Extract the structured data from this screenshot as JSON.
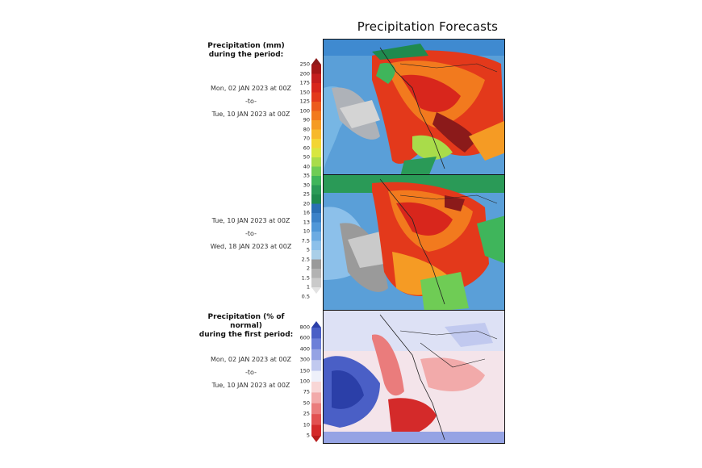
{
  "title": "Precipitation Forecasts",
  "panel1": {
    "header_line1": "Precipitation (mm)",
    "header_line2": "during the period:",
    "start": "Mon, 02 JAN 2023 at 00Z",
    "sep": "-to-",
    "end": "Tue, 10 JAN 2023 at 00Z"
  },
  "panel2": {
    "start": "Tue, 10 JAN 2023 at 00Z",
    "sep": "-to-",
    "end": "Wed, 18 JAN 2023 at 00Z"
  },
  "panel3": {
    "header_line1": "Precipitation (% of normal)",
    "header_line2": "during the first period:",
    "start": "Mon, 02 JAN 2023 at 00Z",
    "sep": "-to-",
    "end": "Tue, 10 JAN 2023 at 00Z"
  },
  "mm_scale": {
    "labels": [
      "250",
      "200",
      "175",
      "150",
      "125",
      "100",
      "90",
      "80",
      "70",
      "60",
      "50",
      "40",
      "35",
      "30",
      "25",
      "20",
      "16",
      "13",
      "10",
      "7.5",
      "5",
      "2.5",
      "2",
      "1.5",
      "1",
      "0.5"
    ],
    "colors": [
      "#8b1a1a",
      "#a31717",
      "#c41e1e",
      "#d8261c",
      "#e3391b",
      "#ec5b1c",
      "#f27a1e",
      "#f59b24",
      "#f7b92c",
      "#f3d533",
      "#d8e640",
      "#a9dc4a",
      "#6fcc55",
      "#3fb55b",
      "#2a9a57",
      "#1f8a4e",
      "#2a6fb4",
      "#3b82c8",
      "#4f97d8",
      "#6cabe2",
      "#8cc0ea",
      "#aacfe8",
      "#9a9a9a",
      "#b2b2b2",
      "#cacaca",
      "#e2e2e2"
    ]
  },
  "pct_scale": {
    "labels": [
      "800",
      "600",
      "400",
      "300",
      "150",
      "100",
      "75",
      "50",
      "25",
      "10",
      "5"
    ],
    "colors": [
      "#2b3fa8",
      "#4a5fc6",
      "#6c7fd8",
      "#95a3e4",
      "#c1c9ef",
      "#eef0fa",
      "#f8d6d6",
      "#f2aaaa",
      "#ea7c7c",
      "#e25050",
      "#d42a2a",
      "#b81e1e"
    ]
  }
}
